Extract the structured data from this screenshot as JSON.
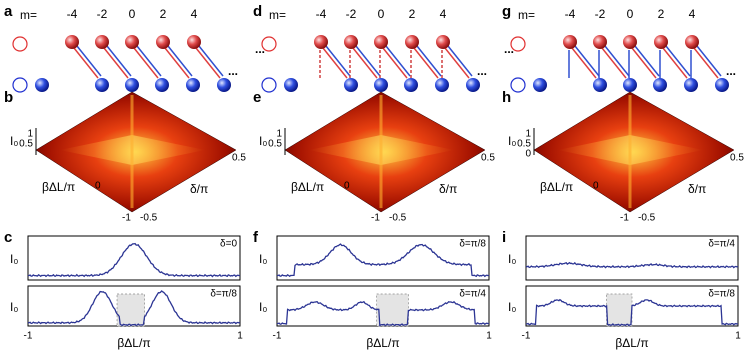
{
  "panels": [
    {
      "schematic": {
        "label": "a",
        "m_prefix": "m=",
        "m_values": [
          "-4",
          "-2",
          "0",
          "2",
          "4"
        ],
        "ellipsis": "..."
      },
      "surface": {
        "label": "b",
        "z_label": "I₀",
        "z_ticks": [
          "0.5",
          "1"
        ],
        "x_label": "βΔL/π",
        "x_ticks": [
          "0",
          "-1"
        ],
        "y_label": "δ/π",
        "y_ticks": [
          "0.5",
          "-0.5"
        ]
      },
      "traces": {
        "label": "c",
        "x_label": "βΔL/π",
        "x_ticks": [
          "-1",
          "1"
        ],
        "plots": [
          {
            "y_label": "I₀",
            "annotation": "δ=0"
          },
          {
            "y_label": "I₀",
            "annotation": "δ=π/8"
          }
        ]
      }
    },
    {
      "schematic": {
        "label": "d",
        "m_prefix": "m=",
        "m_values": [
          "-4",
          "-2",
          "0",
          "2",
          "4"
        ],
        "ellipsis": "..."
      },
      "surface": {
        "label": "e",
        "z_label": "I₀",
        "z_ticks": [
          "0.5",
          "1"
        ],
        "x_label": "βΔL/π",
        "x_ticks": [
          "0",
          "-1"
        ],
        "y_label": "δ/π",
        "y_ticks": [
          "0.5",
          "-0.5"
        ]
      },
      "traces": {
        "label": "f",
        "x_label": "βΔL/π",
        "x_ticks": [
          "-1",
          "1"
        ],
        "plots": [
          {
            "y_label": "I₀",
            "annotation": "δ=π/8"
          },
          {
            "y_label": "I₀",
            "annotation": "δ=π/4"
          }
        ]
      }
    },
    {
      "schematic": {
        "label": "g",
        "m_prefix": "m=",
        "m_values": [
          "-4",
          "-2",
          "0",
          "2",
          "4"
        ],
        "ellipsis": "..."
      },
      "surface": {
        "label": "h",
        "z_label": "I₀",
        "z_ticks": [
          "0",
          "0.5",
          "1"
        ],
        "x_label": "βΔL/π",
        "x_ticks": [
          "0",
          "-1"
        ],
        "y_label": "δ/π",
        "y_ticks": [
          "0.5",
          "-0.5"
        ]
      },
      "traces": {
        "label": "i",
        "x_label": "βΔL/π",
        "x_ticks": [
          "-1",
          "1"
        ],
        "plots": [
          {
            "y_label": "I₀",
            "annotation": "δ=π/4"
          },
          {
            "y_label": "I₀",
            "annotation": "δ=π/8"
          }
        ]
      }
    }
  ]
}
